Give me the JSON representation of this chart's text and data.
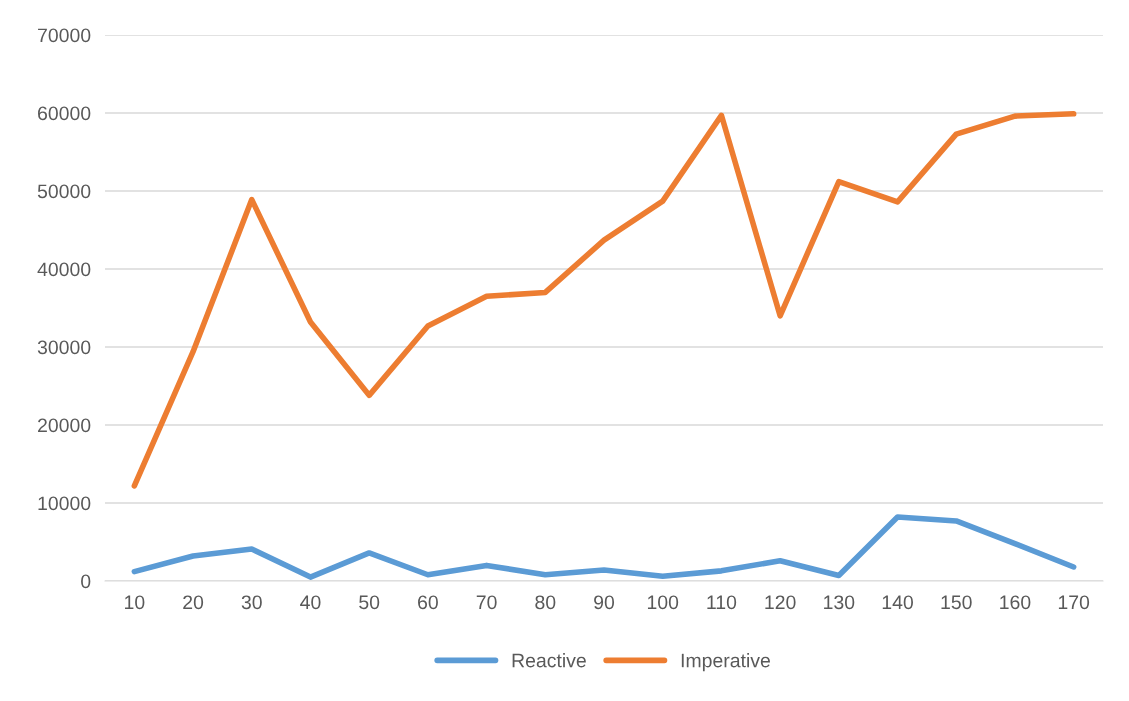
{
  "chart_data": {
    "type": "line",
    "categories": [
      "10",
      "20",
      "30",
      "40",
      "50",
      "60",
      "70",
      "80",
      "90",
      "100",
      "110",
      "120",
      "130",
      "140",
      "150",
      "160",
      "170"
    ],
    "series": [
      {
        "name": "Reactive",
        "color": "#5b9bd5",
        "values": [
          1200,
          3200,
          4100,
          500,
          3600,
          800,
          2000,
          800,
          1400,
          600,
          1300,
          2600,
          700,
          8200,
          7700,
          4800,
          1800
        ]
      },
      {
        "name": "Imperative",
        "color": "#ed7d31",
        "values": [
          12200,
          29400,
          48900,
          33200,
          23800,
          32700,
          36500,
          37000,
          43700,
          48700,
          59700,
          34000,
          51200,
          48600,
          57300,
          59600,
          59900
        ]
      }
    ],
    "ylim": [
      0,
      70000
    ],
    "yticks": [
      0,
      10000,
      20000,
      30000,
      40000,
      50000,
      60000,
      70000
    ],
    "grid": "y",
    "legend": "bottom",
    "marker": "none",
    "line_style": "solid"
  }
}
